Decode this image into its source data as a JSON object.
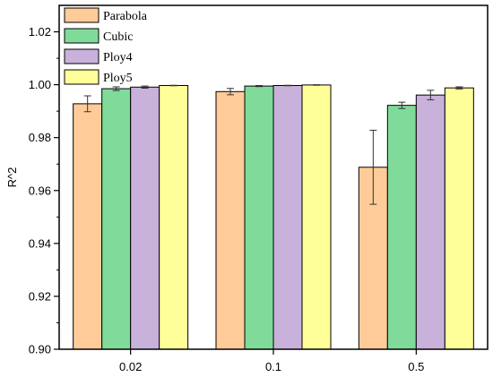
{
  "chart_data": {
    "type": "bar",
    "title": "",
    "xlabel": "",
    "ylabel": "R^2",
    "ylim": [
      0.9,
      1.03
    ],
    "yticks": [
      "0.90",
      "0.92",
      "0.94",
      "0.96",
      "0.98",
      "1.00",
      "1.02"
    ],
    "categories": [
      "0.02",
      "0.1",
      "0.5"
    ],
    "legend_position": "top-left",
    "grid": false,
    "series": [
      {
        "name": "Parabola",
        "color": "#FFCC99",
        "values": [
          0.9928,
          0.9974,
          0.9688
        ],
        "errors": [
          0.003,
          0.0012,
          0.014
        ]
      },
      {
        "name": "Cubic",
        "color": "#80DB9A",
        "values": [
          0.9985,
          0.9995,
          0.9922
        ],
        "errors": [
          0.0007,
          0.0002,
          0.0012
        ]
      },
      {
        "name": "Ploy4",
        "color": "#C8B1DB",
        "values": [
          0.9991,
          0.9997,
          0.9961
        ],
        "errors": [
          0.0004,
          0.0001,
          0.0018
        ]
      },
      {
        "name": "Ploy5",
        "color": "#FFFF99",
        "values": [
          0.9997,
          0.9999,
          0.9988
        ],
        "errors": [
          0.0001,
          0.0001,
          0.0004
        ]
      }
    ]
  }
}
